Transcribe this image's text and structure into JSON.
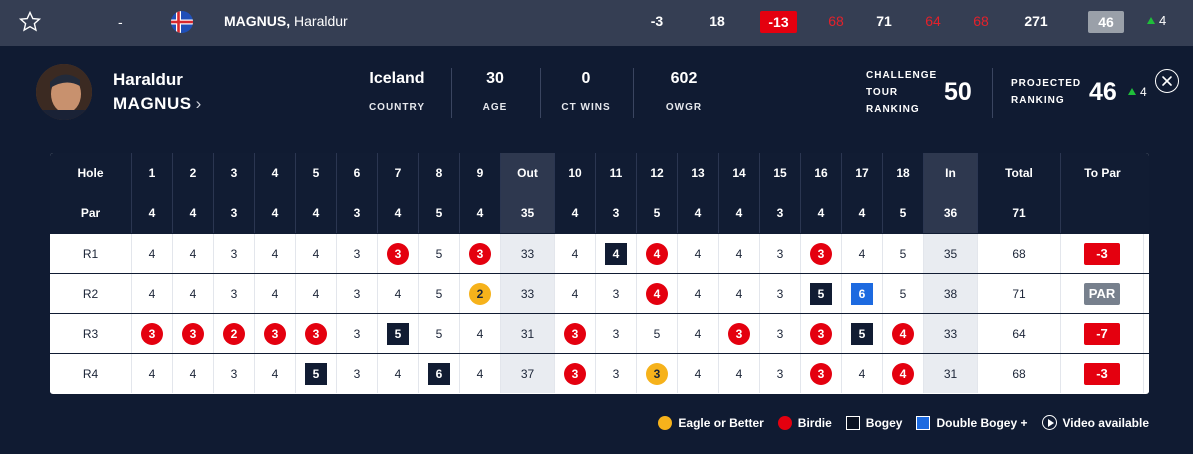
{
  "leaderboard_row": {
    "position": "-",
    "name_last": "MAGNUS,",
    "name_first": "Haraldur",
    "to_par": "-3",
    "thru": "18",
    "total_to_par": "-13",
    "r1": "68",
    "r2": "71",
    "r3": "64",
    "r4": "68",
    "total": "271",
    "projected": "46",
    "movement": "4"
  },
  "player": {
    "first_name": "Haraldur",
    "last_name": "MAGNUS",
    "chevron": "›",
    "country": "Iceland",
    "country_label": "COUNTRY",
    "age": "30",
    "age_label": "AGE",
    "ct_wins": "0",
    "ct_wins_label": "CT WINS",
    "owgr": "602",
    "owgr_label": "OWGR",
    "ranking_label_1": "CHALLENGE",
    "ranking_label_2": "TOUR",
    "ranking_label_3": "RANKING",
    "ranking": "50",
    "proj_label_1": "PROJECTED",
    "proj_label_2": "RANKING",
    "projected": "46",
    "proj_move": "4"
  },
  "scorecard": {
    "header_holes": [
      "Hole",
      "1",
      "2",
      "3",
      "4",
      "5",
      "6",
      "7",
      "8",
      "9",
      "Out",
      "10",
      "11",
      "12",
      "13",
      "14",
      "15",
      "16",
      "17",
      "18",
      "In",
      "Total",
      "To Par"
    ],
    "par_row": [
      "Par",
      "4",
      "4",
      "3",
      "4",
      "4",
      "3",
      "4",
      "5",
      "4",
      "35",
      "4",
      "3",
      "5",
      "4",
      "4",
      "3",
      "4",
      "4",
      "5",
      "36",
      "71",
      ""
    ],
    "rounds": [
      {
        "label": "R1",
        "cells": [
          [
            "4",
            ""
          ],
          [
            "4",
            ""
          ],
          [
            "3",
            ""
          ],
          [
            "4",
            ""
          ],
          [
            "4",
            ""
          ],
          [
            "3",
            ""
          ],
          [
            "3",
            "birdie"
          ],
          [
            "5",
            ""
          ],
          [
            "3",
            "birdie"
          ],
          [
            "33",
            ""
          ],
          [
            "4",
            ""
          ],
          [
            "4",
            "bogey"
          ],
          [
            "4",
            "birdie"
          ],
          [
            "4",
            ""
          ],
          [
            "4",
            ""
          ],
          [
            "3",
            ""
          ],
          [
            "3",
            "birdie"
          ],
          [
            "4",
            ""
          ],
          [
            "5",
            ""
          ],
          [
            "35",
            ""
          ],
          [
            "68",
            ""
          ]
        ],
        "to_par": "-3",
        "to_par_style": "red"
      },
      {
        "label": "R2",
        "cells": [
          [
            "4",
            ""
          ],
          [
            "4",
            ""
          ],
          [
            "3",
            ""
          ],
          [
            "4",
            ""
          ],
          [
            "4",
            ""
          ],
          [
            "3",
            ""
          ],
          [
            "4",
            ""
          ],
          [
            "5",
            ""
          ],
          [
            "2",
            "eagle"
          ],
          [
            "33",
            ""
          ],
          [
            "4",
            ""
          ],
          [
            "3",
            ""
          ],
          [
            "4",
            "birdie"
          ],
          [
            "4",
            ""
          ],
          [
            "4",
            ""
          ],
          [
            "3",
            ""
          ],
          [
            "5",
            "bogey"
          ],
          [
            "6",
            "dbogey"
          ],
          [
            "5",
            ""
          ],
          [
            "38",
            ""
          ],
          [
            "71",
            ""
          ]
        ],
        "to_par": "PAR",
        "to_par_style": "grey"
      },
      {
        "label": "R3",
        "cells": [
          [
            "3",
            "birdie"
          ],
          [
            "3",
            "birdie"
          ],
          [
            "2",
            "birdie"
          ],
          [
            "3",
            "birdie"
          ],
          [
            "3",
            "birdie"
          ],
          [
            "3",
            ""
          ],
          [
            "5",
            "bogey"
          ],
          [
            "5",
            ""
          ],
          [
            "4",
            ""
          ],
          [
            "31",
            ""
          ],
          [
            "3",
            "birdie"
          ],
          [
            "3",
            ""
          ],
          [
            "5",
            ""
          ],
          [
            "4",
            ""
          ],
          [
            "3",
            "birdie"
          ],
          [
            "3",
            ""
          ],
          [
            "3",
            "birdie"
          ],
          [
            "5",
            "bogey"
          ],
          [
            "4",
            "birdie"
          ],
          [
            "33",
            ""
          ],
          [
            "64",
            ""
          ]
        ],
        "to_par": "-7",
        "to_par_style": "red"
      },
      {
        "label": "R4",
        "cells": [
          [
            "4",
            ""
          ],
          [
            "4",
            ""
          ],
          [
            "3",
            ""
          ],
          [
            "4",
            ""
          ],
          [
            "5",
            "bogey"
          ],
          [
            "3",
            ""
          ],
          [
            "4",
            ""
          ],
          [
            "6",
            "bogey"
          ],
          [
            "4",
            ""
          ],
          [
            "37",
            ""
          ],
          [
            "3",
            "birdie"
          ],
          [
            "3",
            ""
          ],
          [
            "3",
            "eagle"
          ],
          [
            "4",
            ""
          ],
          [
            "4",
            ""
          ],
          [
            "3",
            ""
          ],
          [
            "3",
            "birdie"
          ],
          [
            "4",
            ""
          ],
          [
            "4",
            "birdie"
          ],
          [
            "31",
            ""
          ],
          [
            "68",
            ""
          ]
        ],
        "to_par": "-3",
        "to_par_style": "red"
      }
    ]
  },
  "legend": {
    "eagle": "Eagle or Better",
    "birdie": "Birdie",
    "bogey": "Bogey",
    "dbogey": "Double Bogey +",
    "video": "Video available"
  },
  "colors": {
    "birdie": "#e4000f",
    "eagle": "#f6b21b",
    "bogey": "#111c33",
    "double_bogey": "#1d6ae0"
  }
}
